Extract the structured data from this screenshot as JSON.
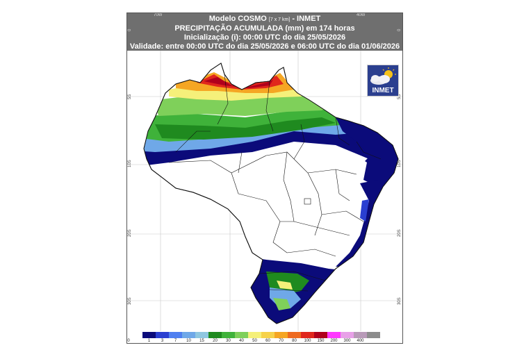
{
  "header": {
    "line1_main": "Modelo COSMO",
    "line1_small": "[7 x 7 km]",
    "line1_tail": "- INMET",
    "line2": "PRECIPITAÇÃO ACUMULADA (mm) em 174 horas",
    "line3": "Inicialização (i): 00:00 UTC do dia 25/05/2026",
    "line4": "Validade: entre 00:00 UTC do dia 25/05/2026 e 06:00 UTC do dia 01/06/2026"
  },
  "longitude_labels": [
    "70W",
    "40W"
  ],
  "latitude_labels": [
    "0",
    "5S",
    "10S",
    "20S",
    "30S"
  ],
  "logo": {
    "text": "INMET",
    "icon": "sun-cloud-icon"
  },
  "legend": {
    "labels": [
      "0",
      "1",
      "3",
      "7",
      "10",
      "15",
      "20",
      "30",
      "40",
      "50",
      "60",
      "70",
      "80",
      "100",
      "150",
      "200",
      "300",
      "400"
    ],
    "colors": [
      "#0b0b7a",
      "#2a3fd1",
      "#4f7ff0",
      "#6fa8e8",
      "#8fc7e0",
      "#1f8a1f",
      "#3fb23a",
      "#7fd05a",
      "#f5f07a",
      "#f6d24a",
      "#f5a623",
      "#ee6a1f",
      "#e0261c",
      "#b0001c",
      "#ff38ff",
      "#e8a0e8",
      "#b89ab8",
      "#8c8c8c"
    ]
  },
  "colors": {
    "header_bg": "#6f6f6f",
    "land_white": "#ffffff",
    "heavy_rain": "#0b0b7a"
  }
}
